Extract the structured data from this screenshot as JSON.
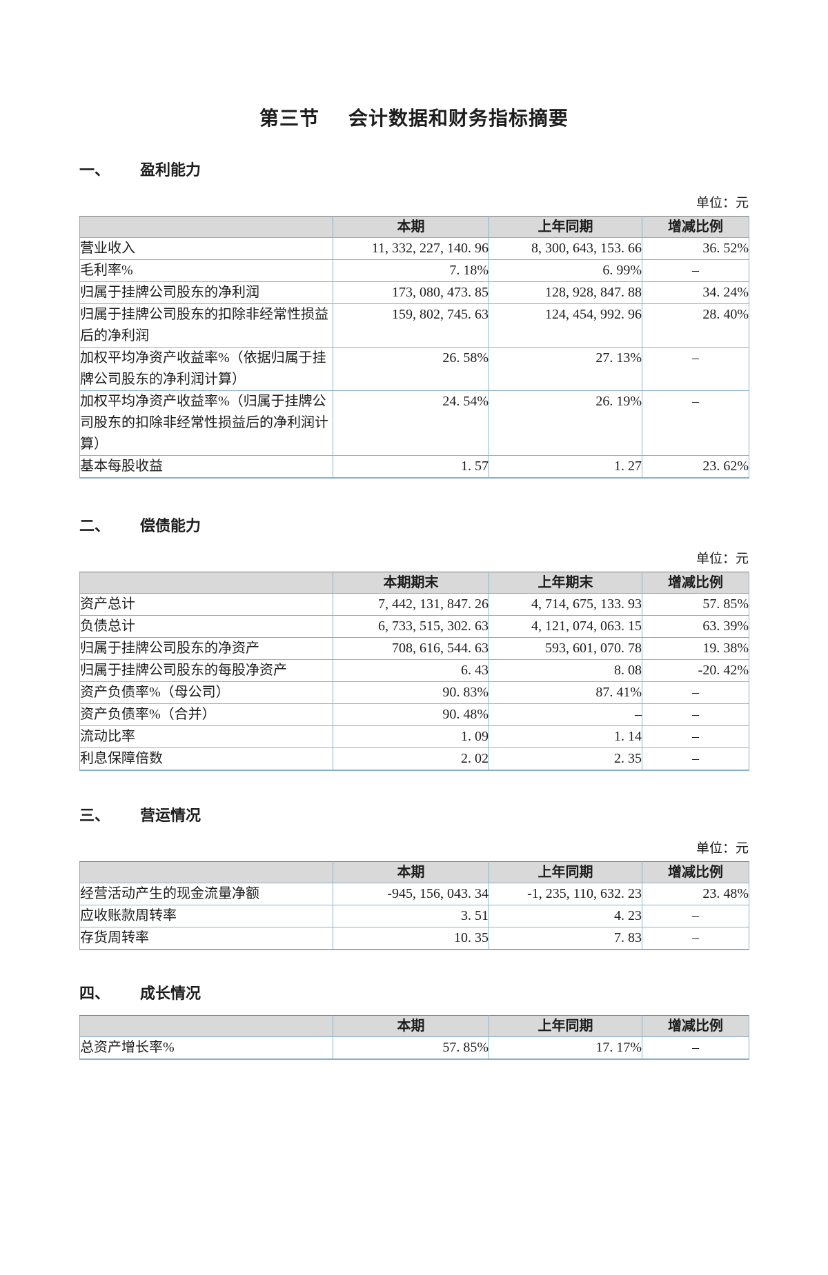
{
  "doc_title": {
    "part1": "第三节",
    "part2": "会计数据和财务指标摘要"
  },
  "sections": [
    {
      "num": "一、",
      "name": "盈利能力",
      "unit": "单位：元",
      "table": {
        "headers": [
          "",
          "本期",
          "上年同期",
          "增减比例"
        ],
        "rows": [
          {
            "label": "营业收入",
            "current": "11, 332, 227, 140. 96",
            "prior": "8, 300, 643, 153. 66",
            "change": "36. 52%"
          },
          {
            "label": "毛利率%",
            "current": "7. 18%",
            "prior": "6. 99%",
            "change": "–"
          },
          {
            "label": "归属于挂牌公司股东的净利润",
            "current": "173, 080, 473. 85",
            "prior": "128, 928, 847. 88",
            "change": "34. 24%"
          },
          {
            "label": "归属于挂牌公司股东的扣除非经常性损益后的净利润",
            "current": "159, 802, 745. 63",
            "prior": "124, 454, 992. 96",
            "change": "28. 40%"
          },
          {
            "label": "加权平均净资产收益率%（依据归属于挂牌公司股东的净利润计算）",
            "current": "26. 58%",
            "prior": "27. 13%",
            "change": "–"
          },
          {
            "label": "加权平均净资产收益率%（归属于挂牌公司股东的扣除非经常性损益后的净利润计算）",
            "current": "24. 54%",
            "prior": "26. 19%",
            "change": "–"
          },
          {
            "label": "基本每股收益",
            "current": "1. 57",
            "prior": "1. 27",
            "change": "23. 62%"
          }
        ]
      }
    },
    {
      "num": "二、",
      "name": "偿债能力",
      "unit": "单位：元",
      "table": {
        "headers": [
          "",
          "本期期末",
          "上年期末",
          "增减比例"
        ],
        "rows": [
          {
            "label": "资产总计",
            "current": "7, 442, 131, 847. 26",
            "prior": "4, 714, 675, 133. 93",
            "change": "57. 85%"
          },
          {
            "label": "负债总计",
            "current": "6, 733, 515, 302. 63",
            "prior": "4, 121, 074, 063. 15",
            "change": "63. 39%"
          },
          {
            "label": "归属于挂牌公司股东的净资产",
            "current": "708, 616, 544. 63",
            "prior": "593, 601, 070. 78",
            "change": "19. 38%"
          },
          {
            "label": "归属于挂牌公司股东的每股净资产",
            "current": "6. 43",
            "prior": "8. 08",
            "change": "-20. 42%"
          },
          {
            "label": "资产负债率%（母公司）",
            "current": "90. 83%",
            "prior": "87. 41%",
            "change": "–"
          },
          {
            "label": "资产负债率%（合并）",
            "current": "90. 48%",
            "prior": "–",
            "change": "–"
          },
          {
            "label": "流动比率",
            "current": "1. 09",
            "prior": "1. 14",
            "change": "–"
          },
          {
            "label": "利息保障倍数",
            "current": "2. 02",
            "prior": "2. 35",
            "change": "–"
          }
        ]
      }
    },
    {
      "num": "三、",
      "name": "营运情况",
      "unit": "单位：元",
      "table": {
        "headers": [
          "",
          "本期",
          "上年同期",
          "增减比例"
        ],
        "rows": [
          {
            "label": "经营活动产生的现金流量净额",
            "current": "-945, 156, 043. 34",
            "prior": "-1, 235, 110, 632. 23",
            "change": "23. 48%"
          },
          {
            "label": "应收账款周转率",
            "current": "3. 51",
            "prior": "4. 23",
            "change": "–"
          },
          {
            "label": "存货周转率",
            "current": "10. 35",
            "prior": "7. 83",
            "change": "–"
          }
        ]
      }
    },
    {
      "num": "四、",
      "name": "成长情况",
      "table": {
        "headers": [
          "",
          "本期",
          "上年同期",
          "增减比例"
        ],
        "rows": [
          {
            "label": "总资产增长率%",
            "current": "57. 85%",
            "prior": "17. 17%",
            "change": "–"
          }
        ]
      }
    }
  ]
}
